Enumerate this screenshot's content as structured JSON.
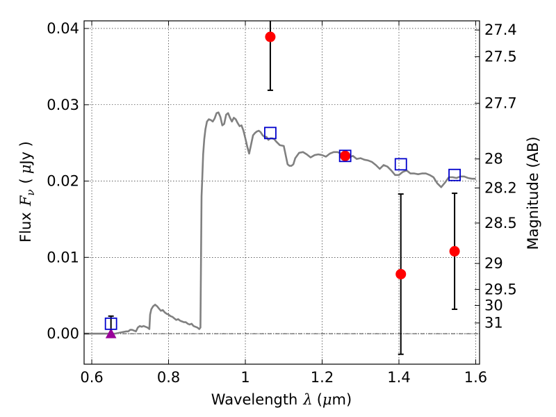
{
  "chart_data": {
    "type": "scatter",
    "xlabel": "Wavelength",
    "xlabel_symbol": "λ",
    "xlabel_unit_open": "(",
    "xlabel_unit_mu": "μ",
    "xlabel_unit_rest": "m)",
    "ylabel": "Flux",
    "ylabel_symbol": "F",
    "ylabel_sub": "ν",
    "ylabel_unit_open": "(",
    "ylabel_unit_mu": "μ",
    "ylabel_unit_rest": "Jy )",
    "y2label": "Magnitude (AB)",
    "xlim": [
      0.58,
      1.61
    ],
    "ylim": [
      -0.004,
      0.041
    ],
    "grid": true,
    "x_ticks": [
      0.6,
      0.8,
      1.0,
      1.2,
      1.4,
      1.6
    ],
    "x_tick_labels": [
      "0.6",
      "0.8",
      "1",
      "1.2",
      "1.4",
      "1.6"
    ],
    "y_ticks": [
      0.0,
      0.01,
      0.02,
      0.03,
      0.04
    ],
    "y_tick_labels": [
      "0.00",
      "0.01",
      "0.02",
      "0.03",
      "0.04"
    ],
    "mag_ticks": [
      {
        "label": "27.4",
        "flux": 0.0398
      },
      {
        "label": "27.5",
        "flux": 0.0363
      },
      {
        "label": "27.7",
        "flux": 0.0302
      },
      {
        "label": "28",
        "flux": 0.0229
      },
      {
        "label": "28.2",
        "flux": 0.0191
      },
      {
        "label": "28.5",
        "flux": 0.0145
      },
      {
        "label": "29",
        "flux": 0.0092
      },
      {
        "label": "29.5",
        "flux": 0.0058
      },
      {
        "label": "30",
        "flux": 0.0037
      },
      {
        "label": "31",
        "flux": 0.0014
      }
    ],
    "series": [
      {
        "name": "model_sed",
        "kind": "line",
        "color": "#808080",
        "x": [
          0.58,
          0.66,
          0.67,
          0.68,
          0.69,
          0.695,
          0.7,
          0.705,
          0.71,
          0.715,
          0.72,
          0.725,
          0.73,
          0.735,
          0.74,
          0.745,
          0.75,
          0.752,
          0.755,
          0.76,
          0.765,
          0.77,
          0.775,
          0.78,
          0.785,
          0.79,
          0.795,
          0.8,
          0.805,
          0.81,
          0.815,
          0.82,
          0.825,
          0.83,
          0.835,
          0.84,
          0.845,
          0.85,
          0.855,
          0.86,
          0.865,
          0.87,
          0.875,
          0.88,
          0.883,
          0.886,
          0.888,
          0.89,
          0.893,
          0.896,
          0.9,
          0.905,
          0.91,
          0.915,
          0.92,
          0.925,
          0.93,
          0.935,
          0.94,
          0.945,
          0.95,
          0.955,
          0.96,
          0.965,
          0.97,
          0.975,
          0.98,
          0.985,
          0.99,
          0.995,
          1.0,
          1.005,
          1.01,
          1.015,
          1.02,
          1.025,
          1.03,
          1.035,
          1.04,
          1.045,
          1.05,
          1.055,
          1.06,
          1.065,
          1.07,
          1.075,
          1.08,
          1.09,
          1.1,
          1.11,
          1.115,
          1.12,
          1.125,
          1.13,
          1.14,
          1.15,
          1.16,
          1.17,
          1.18,
          1.19,
          1.2,
          1.21,
          1.22,
          1.23,
          1.24,
          1.25,
          1.26,
          1.27,
          1.28,
          1.29,
          1.3,
          1.31,
          1.32,
          1.33,
          1.34,
          1.35,
          1.36,
          1.37,
          1.38,
          1.39,
          1.4,
          1.41,
          1.42,
          1.43,
          1.44,
          1.45,
          1.46,
          1.47,
          1.48,
          1.49,
          1.5,
          1.51,
          1.52,
          1.53,
          1.54,
          1.55,
          1.56,
          1.57,
          1.58,
          1.59,
          1.6
        ],
        "values": [
          0.0,
          0.0,
          0.0001,
          0.0002,
          0.0003,
          0.0003,
          0.0005,
          0.0005,
          0.0004,
          0.0003,
          0.0008,
          0.001,
          0.0009,
          0.001,
          0.0009,
          0.0008,
          0.0006,
          0.0025,
          0.0032,
          0.0036,
          0.0038,
          0.0036,
          0.0033,
          0.003,
          0.0031,
          0.0028,
          0.0026,
          0.0025,
          0.0023,
          0.0022,
          0.002,
          0.0018,
          0.0019,
          0.0017,
          0.0016,
          0.0015,
          0.0015,
          0.0013,
          0.0012,
          0.0013,
          0.001,
          0.0009,
          0.0008,
          0.0006,
          0.0008,
          0.018,
          0.0205,
          0.0235,
          0.0255,
          0.0268,
          0.0278,
          0.0281,
          0.028,
          0.0278,
          0.0282,
          0.0289,
          0.029,
          0.0284,
          0.0273,
          0.0275,
          0.0287,
          0.0289,
          0.0283,
          0.0278,
          0.0283,
          0.0281,
          0.0276,
          0.0272,
          0.0273,
          0.0266,
          0.0256,
          0.0245,
          0.0236,
          0.0248,
          0.026,
          0.0263,
          0.0265,
          0.0266,
          0.0264,
          0.026,
          0.0258,
          0.0258,
          0.0254,
          0.0256,
          0.0256,
          0.0255,
          0.0252,
          0.0247,
          0.0246,
          0.0222,
          0.022,
          0.022,
          0.0222,
          0.023,
          0.0237,
          0.0238,
          0.0235,
          0.0231,
          0.0234,
          0.0235,
          0.0234,
          0.0232,
          0.0236,
          0.0238,
          0.0238,
          0.0236,
          0.0233,
          0.0231,
          0.0233,
          0.0229,
          0.023,
          0.0228,
          0.0227,
          0.0225,
          0.0221,
          0.0216,
          0.0221,
          0.0219,
          0.0214,
          0.0208,
          0.0208,
          0.0212,
          0.0214,
          0.021,
          0.021,
          0.0209,
          0.021,
          0.021,
          0.0208,
          0.0205,
          0.0197,
          0.0192,
          0.0198,
          0.0205,
          0.0205,
          0.0204,
          0.0206,
          0.0206,
          0.0204,
          0.0203,
          0.0203
        ]
      },
      {
        "name": "model_photometry",
        "kind": "open_square",
        "color": "#0000cc",
        "x": [
          0.65,
          1.065,
          1.26,
          1.405,
          1.545
        ],
        "values": [
          0.0013,
          0.0263,
          0.0233,
          0.0222,
          0.0208
        ]
      },
      {
        "name": "observed_flux",
        "kind": "filled_circle",
        "color": "#ff0000",
        "x": [
          1.065,
          1.26,
          1.405,
          1.545
        ],
        "values": [
          0.0389,
          0.0233,
          0.0078,
          0.0108
        ],
        "err": [
          0.007,
          0.0,
          0.0105,
          0.0076
        ]
      },
      {
        "name": "upper_limit",
        "kind": "triangle",
        "color": "#990099",
        "x": [
          0.65
        ],
        "values": [
          0.0
        ],
        "err": [
          0.0023
        ]
      }
    ]
  }
}
